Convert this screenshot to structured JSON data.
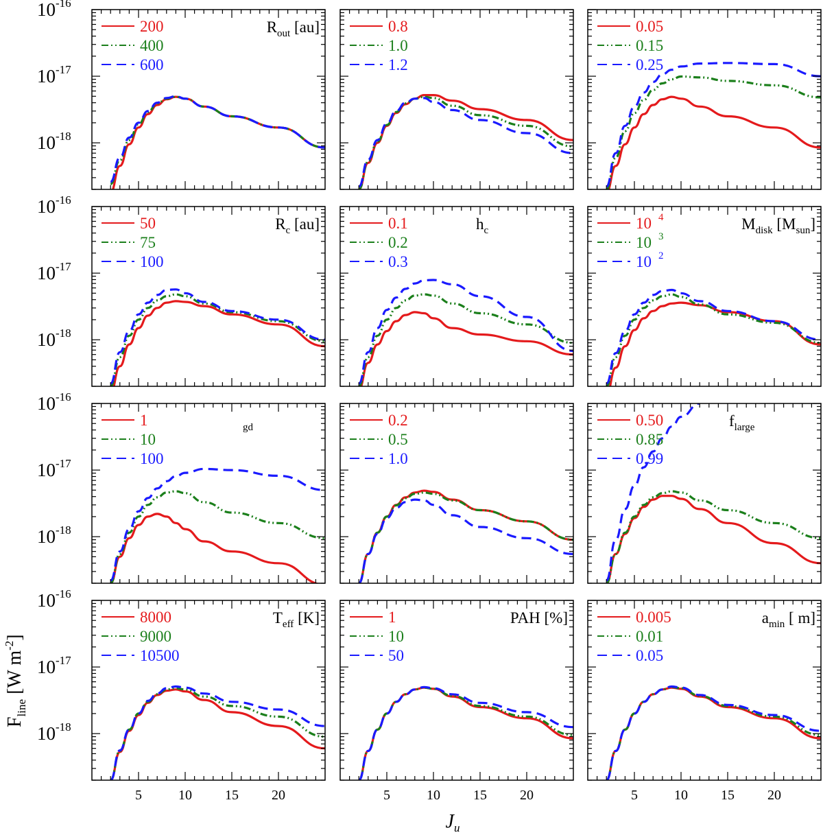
{
  "figure": {
    "colors": {
      "red": "#e41a1c",
      "green": "#1b7f1b",
      "blue": "#1a1aff",
      "frame": "#000000"
    },
    "line_styles": [
      "solid",
      "dash-dot-dot",
      "dashed"
    ],
    "xlabel": {
      "main": "J",
      "sub": "u"
    },
    "ylabel": {
      "main": "F",
      "sub": "line",
      "unit_open": " [W m",
      "unit_exp": "-2",
      "unit_close": "]"
    },
    "y_ticks": [
      {
        "base": "10",
        "exp": "-16",
        "value": 1e-16
      },
      {
        "base": "10",
        "exp": "-17",
        "value": 1e-17
      },
      {
        "base": "10",
        "exp": "-18",
        "value": 1e-18
      }
    ],
    "x_ticks": [
      "5",
      "10",
      "15",
      "20"
    ]
  },
  "chart_data": [
    {
      "type": "line",
      "panel": 1,
      "parameter": {
        "main": "R",
        "sub": "out",
        "rest": " [au]"
      },
      "xlim": [
        0,
        25
      ],
      "ylim": [
        2e-19,
        1e-16
      ],
      "yscale": "log",
      "x": [
        2,
        3,
        4,
        5,
        6,
        7,
        8,
        9,
        10,
        12,
        15,
        20,
        25
      ],
      "series": [
        {
          "name": "200",
          "color": "red",
          "values": [
            1.8e-19,
            4.5e-19,
            9.5e-19,
            1.7e-18,
            2.7e-18,
            3.7e-18,
            4.5e-18,
            4.9e-18,
            4.6e-18,
            3.5e-18,
            2.5e-18,
            1.7e-18,
            8.5e-19
          ]
        },
        {
          "name": "400",
          "color": "green",
          "values": [
            2.4e-19,
            5.5e-19,
            1.1e-18,
            1.9e-18,
            2.9e-18,
            3.9e-18,
            4.6e-18,
            4.9e-18,
            4.6e-18,
            3.5e-18,
            2.5e-18,
            1.7e-18,
            8.5e-19
          ]
        },
        {
          "name": "600",
          "color": "blue",
          "values": [
            2.6e-19,
            6e-19,
            1.2e-18,
            2e-18,
            3e-18,
            4e-18,
            4.7e-18,
            5e-18,
            4.6e-18,
            3.5e-18,
            2.5e-18,
            1.7e-18,
            8.5e-19
          ]
        }
      ]
    },
    {
      "type": "line",
      "panel": 2,
      "parameter": {
        "main": "",
        "sub": "",
        "rest": ""
      },
      "xlim": [
        0,
        25
      ],
      "ylim": [
        2e-19,
        1e-16
      ],
      "yscale": "log",
      "x": [
        2,
        3,
        4,
        5,
        6,
        7,
        8,
        9,
        10,
        12,
        15,
        20,
        25
      ],
      "series": [
        {
          "name": "0.8",
          "color": "red",
          "values": [
            2e-19,
            5e-19,
            1e-18,
            1.8e-18,
            2.8e-18,
            3.8e-18,
            4.6e-18,
            5.2e-18,
            5.2e-18,
            4.3e-18,
            3.2e-18,
            2.2e-18,
            1.1e-18
          ]
        },
        {
          "name": "1.0",
          "color": "green",
          "values": [
            2e-19,
            5.2e-19,
            1.05e-18,
            1.85e-18,
            2.9e-18,
            3.9e-18,
            4.6e-18,
            4.9e-18,
            4.7e-18,
            3.6e-18,
            2.6e-18,
            1.8e-18,
            8.8e-19
          ]
        },
        {
          "name": "1.2",
          "color": "blue",
          "values": [
            2.2e-19,
            5.6e-19,
            1.1e-18,
            1.95e-18,
            3e-18,
            4e-18,
            4.6e-18,
            4.7e-18,
            4.1e-18,
            3.1e-18,
            2.2e-18,
            1.4e-18,
            7e-19
          ]
        }
      ]
    },
    {
      "type": "line",
      "panel": 3,
      "parameter": {
        "main": "",
        "sub": "",
        "rest": ""
      },
      "xlim": [
        0,
        25
      ],
      "ylim": [
        2e-19,
        1e-16
      ],
      "yscale": "log",
      "x": [
        2,
        3,
        4,
        5,
        6,
        7,
        8,
        9,
        10,
        12,
        15,
        20,
        25
      ],
      "series": [
        {
          "name": "0.05",
          "color": "red",
          "values": [
            1.8e-19,
            4.5e-19,
            9.5e-19,
            1.7e-18,
            2.7e-18,
            3.7e-18,
            4.5e-18,
            4.9e-18,
            4.6e-18,
            3.5e-18,
            2.5e-18,
            1.7e-18,
            8.5e-19
          ]
        },
        {
          "name": "0.15",
          "color": "green",
          "values": [
            2e-19,
            6e-19,
            1.5e-18,
            2.8e-18,
            4.4e-18,
            6.2e-18,
            7.8e-18,
            9e-18,
            9.9e-18,
            9.6e-18,
            8.5e-18,
            7.3e-18,
            4.8e-18
          ]
        },
        {
          "name": "0.25",
          "color": "blue",
          "values": [
            2.2e-19,
            7e-19,
            1.8e-18,
            3.5e-18,
            5.7e-18,
            8.2e-18,
            1.07e-17,
            1.25e-17,
            1.4e-17,
            1.55e-17,
            1.58e-17,
            1.52e-17,
            1e-17
          ]
        }
      ]
    },
    {
      "type": "line",
      "panel": 4,
      "parameter": {
        "main": "R",
        "sub": "c",
        "rest": " [au]"
      },
      "xlim": [
        0,
        25
      ],
      "ylim": [
        2e-19,
        1e-16
      ],
      "yscale": "log",
      "x": [
        2,
        3,
        4,
        5,
        6,
        7,
        8,
        9,
        10,
        12,
        15,
        20,
        25
      ],
      "series": [
        {
          "name": "50",
          "color": "red",
          "values": [
            1.6e-19,
            4e-19,
            8.5e-19,
            1.5e-18,
            2.3e-18,
            3e-18,
            3.6e-18,
            3.8e-18,
            3.7e-18,
            3.2e-18,
            2.4e-18,
            1.7e-18,
            8e-19
          ]
        },
        {
          "name": "75",
          "color": "green",
          "values": [
            2e-19,
            5.5e-19,
            1.15e-18,
            2e-18,
            3e-18,
            3.9e-18,
            4.5e-18,
            4.8e-18,
            4.5e-18,
            3.5e-18,
            2.6e-18,
            1.9e-18,
            9.5e-19
          ]
        },
        {
          "name": "100",
          "color": "blue",
          "values": [
            2.2e-19,
            6.5e-19,
            1.35e-18,
            2.4e-18,
            3.6e-18,
            4.7e-18,
            5.6e-18,
            5.7e-18,
            5e-18,
            3.7e-18,
            2.7e-18,
            2e-18,
            1e-18
          ]
        }
      ]
    },
    {
      "type": "line",
      "panel": 5,
      "parameter": {
        "main": "h",
        "sub": "c",
        "rest": ""
      },
      "xlim": [
        0,
        25
      ],
      "ylim": [
        2e-19,
        1e-16
      ],
      "yscale": "log",
      "x": [
        2,
        3,
        4,
        5,
        6,
        7,
        8,
        9,
        10,
        12,
        15,
        20,
        25
      ],
      "series": [
        {
          "name": "0.1",
          "color": "red",
          "values": [
            1.8e-19,
            4.5e-19,
            8.5e-19,
            1.35e-18,
            1.9e-18,
            2.35e-18,
            2.6e-18,
            2.5e-18,
            2.1e-18,
            1.5e-18,
            1.2e-18,
            9.5e-19,
            6e-19
          ]
        },
        {
          "name": "0.2",
          "color": "green",
          "values": [
            2e-19,
            5.5e-19,
            1.15e-18,
            2e-18,
            3e-18,
            3.9e-18,
            4.6e-18,
            4.8e-18,
            4.6e-18,
            3.5e-18,
            2.5e-18,
            1.7e-18,
            9e-19
          ]
        },
        {
          "name": "0.3",
          "color": "blue",
          "values": [
            2.2e-19,
            6.5e-19,
            1.5e-18,
            2.8e-18,
            4.3e-18,
            5.8e-18,
            7e-18,
            7.8e-18,
            7.9e-18,
            6.8e-18,
            4.5e-18,
            2.2e-18,
            6.8e-19
          ]
        }
      ]
    },
    {
      "type": "line",
      "panel": 6,
      "parameter": {
        "main": "M",
        "sub": "disk",
        "rest": " [M",
        "sub2": "sun",
        "rest2": "]"
      },
      "xlim": [
        0,
        25
      ],
      "ylim": [
        2e-19,
        1e-16
      ],
      "yscale": "log",
      "x": [
        2,
        3,
        4,
        5,
        6,
        7,
        8,
        9,
        10,
        12,
        15,
        20,
        25
      ],
      "series": [
        {
          "name": "10",
          "exp": "4",
          "color": "red",
          "values": [
            1.5e-19,
            3.8e-19,
            8e-19,
            1.4e-18,
            2.1e-18,
            2.7e-18,
            3.2e-18,
            3.5e-18,
            3.6e-18,
            3.3e-18,
            2.6e-18,
            1.9e-18,
            8.5e-19
          ]
        },
        {
          "name": "10",
          "exp": "3",
          "color": "green",
          "values": [
            2e-19,
            5.5e-19,
            1.15e-18,
            2e-18,
            3e-18,
            3.9e-18,
            4.5e-18,
            4.8e-18,
            4.4e-18,
            3.4e-18,
            2.4e-18,
            1.8e-18,
            9e-19
          ]
        },
        {
          "name": "10",
          "exp": "2",
          "color": "blue",
          "values": [
            2.2e-19,
            6.3e-19,
            1.35e-18,
            2.4e-18,
            3.6e-18,
            4.7e-18,
            5.4e-18,
            5.6e-18,
            5e-18,
            3.8e-18,
            2.7e-18,
            1.9e-18,
            1e-18
          ]
        }
      ]
    },
    {
      "type": "line",
      "panel": 7,
      "parameter": {
        "main": "",
        "sub": "gd",
        "rest": ""
      },
      "xlim": [
        0,
        25
      ],
      "ylim": [
        2e-19,
        1e-16
      ],
      "yscale": "log",
      "x": [
        2,
        3,
        4,
        5,
        6,
        7,
        8,
        9,
        10,
        12,
        15,
        20,
        25
      ],
      "series": [
        {
          "name": "1",
          "color": "red",
          "values": [
            2e-19,
            5e-19,
            9.5e-19,
            1.5e-18,
            2e-18,
            2.2e-18,
            2e-18,
            1.6e-18,
            1.3e-18,
            8.5e-19,
            6e-19,
            4e-19,
            1.9e-19
          ]
        },
        {
          "name": "10",
          "color": "green",
          "values": [
            2e-19,
            5.5e-19,
            1.15e-18,
            2e-18,
            3e-18,
            3.9e-18,
            4.6e-18,
            4.8e-18,
            4.5e-18,
            3.3e-18,
            2.3e-18,
            1.6e-18,
            9.5e-19
          ]
        },
        {
          "name": "100",
          "color": "blue",
          "values": [
            2.2e-19,
            6e-19,
            1.3e-18,
            2.4e-18,
            3.8e-18,
            5.3e-18,
            6.8e-18,
            8.1e-18,
            9.1e-18,
            1.04e-17,
            1e-17,
            8.2e-18,
            5e-18
          ]
        }
      ]
    },
    {
      "type": "line",
      "panel": 8,
      "parameter": {
        "main": "",
        "sub": "",
        "rest": ""
      },
      "xlim": [
        0,
        25
      ],
      "ylim": [
        2e-19,
        1e-16
      ],
      "yscale": "log",
      "x": [
        2,
        3,
        4,
        5,
        6,
        7,
        8,
        9,
        10,
        12,
        15,
        20,
        25
      ],
      "series": [
        {
          "name": "0.2",
          "color": "red",
          "values": [
            2e-19,
            5.5e-19,
            1.15e-18,
            2e-18,
            3e-18,
            3.9e-18,
            4.6e-18,
            4.9e-18,
            4.7e-18,
            3.6e-18,
            2.5e-18,
            1.7e-18,
            9e-19
          ]
        },
        {
          "name": "0.5",
          "color": "green",
          "values": [
            2e-19,
            5.5e-19,
            1.15e-18,
            2e-18,
            2.95e-18,
            3.8e-18,
            4.4e-18,
            4.6e-18,
            4.4e-18,
            3.5e-18,
            2.5e-18,
            1.7e-18,
            9e-19
          ]
        },
        {
          "name": "1.0",
          "color": "blue",
          "values": [
            2e-19,
            5.5e-19,
            1.1e-18,
            1.9e-18,
            2.7e-18,
            3.3e-18,
            3.6e-18,
            3.5e-18,
            3e-18,
            2.1e-18,
            1.4e-18,
            9.5e-19,
            5.5e-19
          ]
        }
      ]
    },
    {
      "type": "line",
      "panel": 9,
      "parameter": {
        "main": "f",
        "sub": "large",
        "rest": ""
      },
      "xlim": [
        0,
        25
      ],
      "ylim": [
        2e-19,
        1e-16
      ],
      "yscale": "log",
      "x": [
        2,
        3,
        4,
        5,
        6,
        7,
        8,
        9,
        10,
        12,
        15,
        20,
        25
      ],
      "series": [
        {
          "name": "0.50",
          "color": "red",
          "values": [
            2e-19,
            5.5e-19,
            1.1e-18,
            1.9e-18,
            2.8e-18,
            3.6e-18,
            4.1e-18,
            4.1e-18,
            3.7e-18,
            2.6e-18,
            1.6e-18,
            8e-19,
            4e-19
          ]
        },
        {
          "name": "0.85",
          "color": "green",
          "values": [
            2e-19,
            5.5e-19,
            1.15e-18,
            2e-18,
            3e-18,
            3.9e-18,
            4.5e-18,
            4.8e-18,
            4.6e-18,
            3.5e-18,
            2.5e-18,
            1.6e-18,
            9.5e-19
          ]
        },
        {
          "name": "0.99",
          "color": "blue",
          "values": [
            2.2e-19,
            9e-19,
            2.6e-18,
            5.8e-18,
            1.1e-17,
            1.9e-17,
            3e-17,
            4.5e-17,
            6.3e-17,
            1e-16,
            null,
            null,
            null
          ]
        }
      ]
    },
    {
      "type": "line",
      "panel": 10,
      "parameter": {
        "main": "T",
        "sub": "eff",
        "rest": " [K]"
      },
      "xlim": [
        0,
        25
      ],
      "ylim": [
        2e-19,
        1e-16
      ],
      "yscale": "log",
      "x": [
        2,
        3,
        4,
        5,
        6,
        7,
        8,
        9,
        10,
        12,
        15,
        20,
        25
      ],
      "series": [
        {
          "name": "8000",
          "color": "red",
          "values": [
            2e-19,
            5.3e-19,
            1.1e-18,
            1.9e-18,
            2.9e-18,
            3.8e-18,
            4.4e-18,
            4.6e-18,
            4.3e-18,
            3.2e-18,
            2.1e-18,
            1.3e-18,
            6e-19
          ]
        },
        {
          "name": "9000",
          "color": "green",
          "values": [
            2e-19,
            5.5e-19,
            1.15e-18,
            2e-18,
            3e-18,
            3.9e-18,
            4.6e-18,
            4.8e-18,
            4.6e-18,
            3.6e-18,
            2.6e-18,
            1.8e-18,
            9e-19
          ]
        },
        {
          "name": "10500",
          "color": "blue",
          "values": [
            2e-19,
            5.6e-19,
            1.15e-18,
            2e-18,
            3.1e-18,
            4e-18,
            4.8e-18,
            5.1e-18,
            4.9e-18,
            4e-18,
            3e-18,
            2.3e-18,
            1.3e-18
          ]
        }
      ]
    },
    {
      "type": "line",
      "panel": 11,
      "parameter": {
        "main": "PAH [%]",
        "sub": "",
        "rest": ""
      },
      "xlim": [
        0,
        25
      ],
      "ylim": [
        2e-19,
        1e-16
      ],
      "yscale": "log",
      "x": [
        2,
        3,
        4,
        5,
        6,
        7,
        8,
        9,
        10,
        12,
        15,
        20,
        25
      ],
      "series": [
        {
          "name": "1",
          "color": "red",
          "values": [
            2e-19,
            5.5e-19,
            1.15e-18,
            2e-18,
            3e-18,
            3.9e-18,
            4.6e-18,
            4.9e-18,
            4.7e-18,
            3.6e-18,
            2.5e-18,
            1.7e-18,
            8.5e-19
          ]
        },
        {
          "name": "10",
          "color": "green",
          "values": [
            2e-19,
            5.5e-19,
            1.15e-18,
            2e-18,
            3e-18,
            3.9e-18,
            4.6e-18,
            4.9e-18,
            4.7e-18,
            3.7e-18,
            2.6e-18,
            1.8e-18,
            9.5e-19
          ]
        },
        {
          "name": "50",
          "color": "blue",
          "values": [
            2e-19,
            5.5e-19,
            1.15e-18,
            2e-18,
            3e-18,
            3.9e-18,
            4.6e-18,
            5e-18,
            4.8e-18,
            3.9e-18,
            2.9e-18,
            2.1e-18,
            1.25e-18
          ]
        }
      ]
    },
    {
      "type": "line",
      "panel": 12,
      "parameter": {
        "main": "a",
        "sub": "min",
        "rest": " [   m]"
      },
      "xlim": [
        0,
        25
      ],
      "ylim": [
        2e-19,
        1e-16
      ],
      "yscale": "log",
      "x": [
        2,
        3,
        4,
        5,
        6,
        7,
        8,
        9,
        10,
        12,
        15,
        20,
        25
      ],
      "series": [
        {
          "name": "0.005",
          "color": "red",
          "values": [
            2e-19,
            5.5e-19,
            1.15e-18,
            2e-18,
            3e-18,
            3.9e-18,
            4.6e-18,
            4.9e-18,
            4.7e-18,
            3.6e-18,
            2.5e-18,
            1.7e-18,
            8.5e-19
          ]
        },
        {
          "name": "0.01",
          "color": "green",
          "values": [
            2e-19,
            5.5e-19,
            1.15e-18,
            2e-18,
            3e-18,
            3.9e-18,
            4.6e-18,
            5e-18,
            4.8e-18,
            3.7e-18,
            2.6e-18,
            1.8e-18,
            9.5e-19
          ]
        },
        {
          "name": "0.05",
          "color": "blue",
          "values": [
            2e-19,
            5.5e-19,
            1.15e-18,
            2e-18,
            3e-18,
            3.9e-18,
            4.6e-18,
            5.1e-18,
            4.9e-18,
            3.8e-18,
            2.7e-18,
            1.9e-18,
            1.1e-18
          ]
        }
      ]
    }
  ]
}
